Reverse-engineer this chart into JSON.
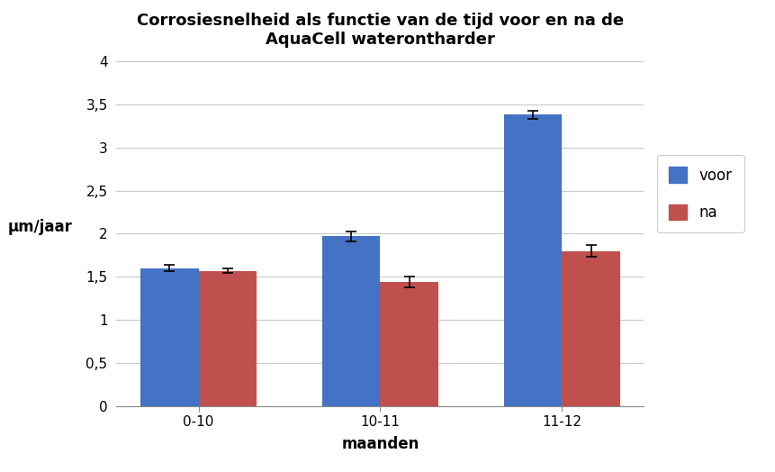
{
  "title": "Corrosiesnelheid als functie van de tijd voor en na de\nAquaCell waterontharder",
  "xlabel": "maanden",
  "ylabel": "μm/jaar",
  "categories": [
    "0-10",
    "10-11",
    "11-12"
  ],
  "voor_values": [
    1.6,
    1.97,
    3.38
  ],
  "na_values": [
    1.57,
    1.44,
    1.8
  ],
  "voor_errors": [
    0.04,
    0.06,
    0.05
  ],
  "na_errors": [
    0.03,
    0.06,
    0.07
  ],
  "voor_color": "#4472C4",
  "na_color": "#C0504D",
  "ylim": [
    0,
    4
  ],
  "yticks": [
    0,
    0.5,
    1.0,
    1.5,
    2.0,
    2.5,
    3.0,
    3.5,
    4.0
  ],
  "ytick_labels": [
    "0",
    "0,5",
    "1",
    "1,5",
    "2",
    "2,5",
    "3",
    "3,5",
    "4"
  ],
  "bar_width": 0.32,
  "background_color": "#ffffff",
  "legend_labels": [
    "voor",
    "na"
  ],
  "title_fontsize": 13,
  "axis_label_fontsize": 12,
  "tick_fontsize": 11
}
